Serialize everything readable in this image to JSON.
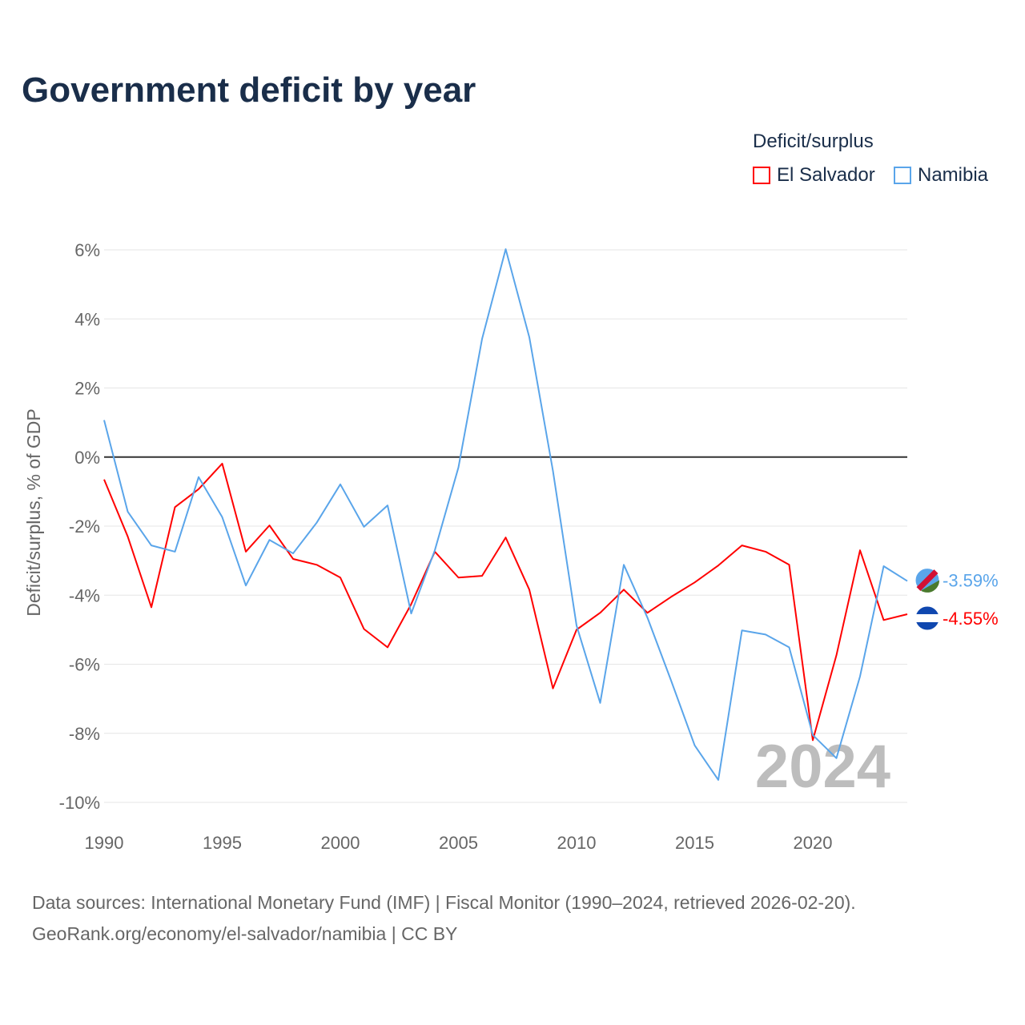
{
  "chart_data": {
    "type": "line",
    "title": "Government deficit by year",
    "ylabel": "Deficit/surplus, % of GDP",
    "xlabel": "",
    "ylim": [
      -10,
      6
    ],
    "xlim": [
      1990,
      2024
    ],
    "yticks": [
      6,
      4,
      2,
      0,
      -2,
      -4,
      -6,
      -8,
      -10
    ],
    "ytick_labels": [
      "6%",
      "4%",
      "2%",
      "0%",
      "-2%",
      "-4%",
      "-6%",
      "-8%",
      "-10%"
    ],
    "xticks": [
      1990,
      1995,
      2000,
      2005,
      2010,
      2015,
      2020
    ],
    "xtick_labels": [
      "1990",
      "1995",
      "2000",
      "2005",
      "2010",
      "2015",
      "2020"
    ],
    "grid": true,
    "legend_title": "Deficit/surplus",
    "legend_placement": "top-right",
    "year_watermark": "2024",
    "x": [
      1990,
      1991,
      1992,
      1993,
      1994,
      1995,
      1996,
      1997,
      1998,
      1999,
      2000,
      2001,
      2002,
      2003,
      2004,
      2005,
      2006,
      2007,
      2008,
      2009,
      2010,
      2011,
      2012,
      2013,
      2014,
      2015,
      2016,
      2017,
      2018,
      2019,
      2020,
      2021,
      2022,
      2023,
      2024
    ],
    "series": [
      {
        "name": "El Salvador",
        "color": "#ff0000",
        "end_label": "-4.55%",
        "values": [
          -0.65,
          -2.3,
          -4.35,
          -1.45,
          -0.93,
          -0.19,
          -2.74,
          -1.98,
          -2.95,
          -3.12,
          -3.49,
          -4.98,
          -5.51,
          -4.26,
          -2.74,
          -3.49,
          -3.44,
          -2.33,
          -3.84,
          -6.7,
          -5.0,
          -4.51,
          -3.84,
          -4.51,
          -4.05,
          -3.63,
          -3.14,
          -2.56,
          -2.74,
          -3.12,
          -8.2,
          -5.74,
          -2.7,
          -4.72,
          -4.55
        ]
      },
      {
        "name": "Namibia",
        "color": "#5aa5ea",
        "end_label": "-3.59%",
        "values": [
          1.07,
          -1.58,
          -2.56,
          -2.74,
          -0.58,
          -1.74,
          -3.72,
          -2.4,
          -2.79,
          -1.9,
          -0.79,
          -2.02,
          -1.4,
          -4.53,
          -2.7,
          -0.3,
          3.42,
          6.02,
          3.47,
          -0.4,
          -4.88,
          -7.12,
          -3.12,
          -4.65,
          -6.47,
          -8.35,
          -9.35,
          -5.02,
          -5.14,
          -5.51,
          -8.05,
          -8.72,
          -6.35,
          -3.16,
          -3.59
        ]
      }
    ]
  },
  "source": {
    "line1": "Data sources: International Monetary Fund (IMF) | Fiscal Monitor (1990–2024, retrieved 2026-02-20).",
    "line2": "GeoRank.org/economy/el-salvador/namibia | CC BY"
  }
}
